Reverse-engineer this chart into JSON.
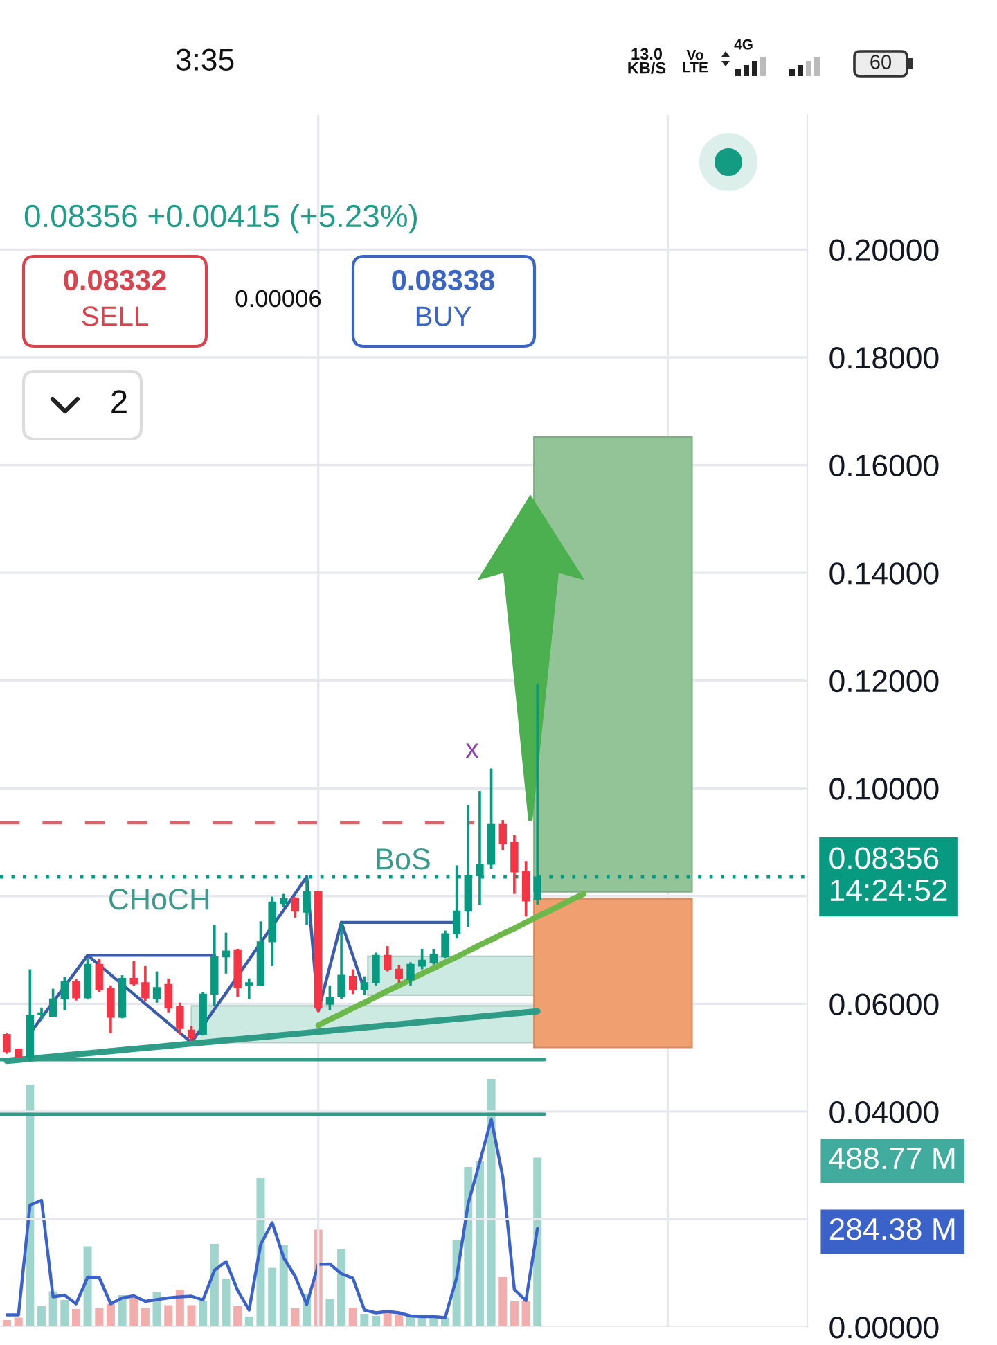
{
  "chart_data": {
    "type": "candlestick",
    "categories": [
      null,
      null,
      null,
      null,
      null,
      null,
      null,
      null,
      null,
      null,
      null,
      null,
      null,
      null,
      null,
      null,
      null,
      null,
      null,
      null,
      null,
      null,
      null,
      null,
      null,
      null,
      null,
      null,
      null,
      null,
      null,
      null,
      null,
      null,
      null,
      null,
      null,
      null,
      null,
      null,
      null,
      null,
      null,
      null,
      null,
      null,
      null,
      null,
      null,
      null,
      null,
      null,
      null,
      null,
      null,
      null,
      null,
      null,
      null,
      null,
      null,
      null,
      null,
      null,
      null,
      null,
      null,
      null,
      null,
      null
    ],
    "ohlc": [
      [
        0.0543,
        0.0545,
        0.0507,
        0.0511
      ],
      [
        0.0516,
        0.0517,
        0.0499,
        0.0501
      ],
      [
        0.0501,
        0.0664,
        0.0494,
        0.0579
      ],
      [
        0.058,
        0.0593,
        0.057,
        0.0583
      ],
      [
        0.0577,
        0.0628,
        0.0575,
        0.0609
      ],
      [
        0.0609,
        0.065,
        0.0588,
        0.0641
      ],
      [
        0.0641,
        0.0646,
        0.0606,
        0.0611
      ],
      [
        0.0611,
        0.0685,
        0.0608,
        0.0673
      ],
      [
        0.0673,
        0.0683,
        0.0622,
        0.0626
      ],
      [
        0.0628,
        0.0634,
        0.0545,
        0.0575
      ],
      [
        0.0575,
        0.0653,
        0.0573,
        0.0647
      ],
      [
        0.0647,
        0.0679,
        0.0634,
        0.0637
      ],
      [
        0.0639,
        0.067,
        0.0605,
        0.0611
      ],
      [
        0.0609,
        0.066,
        0.0602,
        0.063
      ],
      [
        0.0636,
        0.0647,
        0.0584,
        0.0592
      ],
      [
        0.0595,
        0.0602,
        0.0543,
        0.0554
      ],
      [
        0.0551,
        0.0558,
        0.0531,
        0.0537
      ],
      [
        0.0543,
        0.0622,
        0.0541,
        0.0618
      ],
      [
        0.0618,
        0.0746,
        0.0596,
        0.0687
      ],
      [
        0.0687,
        0.0732,
        0.0656,
        0.0698
      ],
      [
        0.07,
        0.0702,
        0.0613,
        0.063
      ],
      [
        0.0634,
        0.0647,
        0.0609,
        0.0639
      ],
      [
        0.0634,
        0.0753,
        0.0633,
        0.0715
      ],
      [
        0.0715,
        0.0799,
        0.067,
        0.0789
      ],
      [
        0.0786,
        0.0804,
        0.0779,
        0.0795
      ],
      [
        0.0796,
        0.0798,
        0.076,
        0.0772
      ],
      [
        0.077,
        0.0836,
        0.0746,
        0.0808
      ],
      [
        0.0808,
        0.081,
        0.0585,
        0.0592
      ],
      [
        0.0599,
        0.0634,
        0.0588,
        0.0611
      ],
      [
        0.0613,
        0.0751,
        0.0609,
        0.0653
      ],
      [
        0.0651,
        0.0664,
        0.0618,
        0.0626
      ],
      [
        0.0626,
        0.0651,
        0.0616,
        0.0639
      ],
      [
        0.0639,
        0.0695,
        0.0634,
        0.069
      ],
      [
        0.069,
        0.0707,
        0.066,
        0.0664
      ],
      [
        0.0664,
        0.0672,
        0.0639,
        0.0647
      ],
      [
        0.0645,
        0.0677,
        0.0634,
        0.0673
      ],
      [
        0.067,
        0.0702,
        0.0664,
        0.0681
      ],
      [
        0.0677,
        0.0702,
        0.0673,
        0.0692
      ],
      [
        0.0687,
        0.0736,
        0.0685,
        0.073
      ],
      [
        0.073,
        0.0857,
        0.0721,
        0.0772
      ],
      [
        0.0772,
        0.0969,
        0.0743,
        0.0838
      ],
      [
        0.0838,
        0.0995,
        0.0783,
        0.0859
      ],
      [
        0.0859,
        0.1037,
        0.0851,
        0.0933
      ],
      [
        0.0933,
        0.0941,
        0.0885,
        0.0897
      ],
      [
        0.0899,
        0.0913,
        0.0804,
        0.0845
      ],
      [
        0.0845,
        0.0865,
        0.0762,
        0.0791
      ],
      [
        0.0794,
        0.1194,
        0.0784,
        0.08356
      ],
      null,
      null,
      null,
      null,
      null,
      null,
      null,
      null,
      null,
      null,
      null,
      null,
      null,
      null,
      null,
      null,
      null,
      null,
      null,
      null,
      null,
      null,
      null
    ],
    "colors": [
      "#f23645",
      "#f23645",
      "#089981",
      "#089981",
      "#089981",
      "#089981",
      "#f23645",
      "#089981",
      "#f23645",
      "#f23645",
      "#089981",
      "#f23645",
      "#f23645",
      "#089981",
      "#f23645",
      "#f23645",
      "#f23645",
      "#089981",
      "#089981",
      "#089981",
      "#f23645",
      "#089981",
      "#089981",
      "#089981",
      "#089981",
      "#f23645",
      "#089981",
      "#f23645",
      "#089981",
      "#089981",
      "#f23645",
      "#089981",
      "#089981",
      "#f23645",
      "#f23645",
      "#089981",
      "#089981",
      "#089981",
      "#089981",
      "#089981",
      "#089981",
      "#089981",
      "#089981",
      "#f23645",
      "#f23645",
      "#f23645",
      "#089981",
      null,
      null,
      null,
      null,
      null,
      null,
      null,
      null,
      null,
      null,
      null,
      null,
      null,
      null,
      null,
      null,
      null,
      null,
      null,
      null,
      null,
      null,
      null
    ],
    "series": [
      {
        "type": "bar",
        "axis": "y2",
        "colors": [
          "#f2aeac",
          "#f2aeac",
          "#a0d5ce",
          "#a0d5ce",
          "#a0d5ce",
          "#a0d5ce",
          "#f2aeac",
          "#a0d5ce",
          "#f2aeac",
          "#f2aeac",
          "#a0d5ce",
          "#f2aeac",
          "#f2aeac",
          "#a0d5ce",
          "#f2aeac",
          "#f2aeac",
          "#f2aeac",
          "#a0d5ce",
          "#a0d5ce",
          "#a0d5ce",
          "#f2aeac",
          "#a0d5ce",
          "#a0d5ce",
          "#a0d5ce",
          "#a0d5ce",
          "#f2aeac",
          "#a0d5ce",
          "#f2aeac",
          "#a0d5ce",
          "#a0d5ce",
          "#f2aeac",
          "#a0d5ce",
          "#a0d5ce",
          "#f2aeac",
          "#f2aeac",
          "#a0d5ce",
          "#a0d5ce",
          "#a0d5ce",
          "#a0d5ce",
          "#a0d5ce",
          "#a0d5ce",
          "#a0d5ce",
          "#a0d5ce",
          "#f2aeac",
          "#f2aeac",
          "#f2aeac",
          "#a0d5ce",
          null,
          null,
          null,
          null,
          null,
          null,
          null,
          null,
          null,
          null,
          null,
          null,
          null,
          null,
          null,
          null,
          null,
          null,
          null,
          null,
          null,
          null,
          null
        ],
        "values": [
          20,
          27,
          700,
          60,
          103,
          78,
          52,
          233,
          54,
          67,
          92,
          87,
          54,
          100,
          63,
          108,
          63,
          76,
          240,
          139,
          60,
          30,
          430,
          171,
          236,
          54,
          95,
          281,
          81,
          224,
          56,
          38,
          32,
          41,
          35,
          30,
          29,
          29,
          27,
          251,
          462,
          478,
          716,
          144,
          74,
          76,
          488.77,
          null,
          null,
          null,
          null,
          null,
          null,
          null,
          null,
          null,
          null,
          null,
          null,
          null,
          null,
          null,
          null,
          null,
          null,
          null,
          null,
          null,
          null,
          null
        ]
      },
      {
        "type": "line",
        "axis": "y2",
        "color": "#3b62c8",
        "values": [
          35,
          35,
          352,
          366,
          87,
          92,
          67,
          144,
          143,
          67,
          84,
          90,
          74,
          79,
          84,
          87,
          89,
          78,
          164,
          189,
          106,
          49,
          238,
          301,
          200,
          146,
          65,
          181,
          182,
          154,
          141,
          49,
          41,
          45,
          41,
          32,
          30,
          30,
          27,
          143,
          357,
          476,
          600,
          433,
          108,
          76,
          284.38,
          null,
          null,
          null,
          null,
          null,
          null,
          null,
          null,
          null,
          null,
          null,
          null,
          null,
          null,
          null,
          null,
          null,
          null,
          null,
          null,
          null,
          null,
          null
        ]
      },
      {
        "type": "line",
        "color": "#3b5bab",
        "values": [
          null,
          null,
          0.0545,
          0.0574,
          0.0603,
          0.0632,
          0.0661,
          0.069,
          0.0672,
          0.0654,
          0.0636,
          0.0618,
          0.06,
          0.0582,
          0.0564,
          0.0546,
          0.0528,
          0.0559,
          0.059,
          0.062,
          0.0651,
          0.0682,
          0.0713,
          0.0744,
          0.0774,
          0.0805,
          0.0836,
          0.0587,
          0.0669,
          0.0751,
          0.0689,
          0.0626,
          null,
          null,
          null,
          null,
          null,
          null,
          null,
          null,
          null,
          null,
          null,
          null,
          null,
          null,
          null,
          null,
          null,
          null,
          null,
          null,
          null,
          null,
          null,
          null,
          null,
          null,
          null,
          null,
          null,
          null,
          null,
          null,
          null,
          null,
          null,
          null,
          null,
          null
        ]
      },
      {
        "type": "line",
        "color": "#3b5bab",
        "values": [
          null,
          null,
          null,
          null,
          null,
          null,
          null,
          0.069,
          0.069,
          0.069,
          0.069,
          0.069,
          0.069,
          0.069,
          0.069,
          0.069,
          0.069,
          0.069,
          0.069,
          null,
          null,
          null,
          null,
          null,
          null,
          null,
          null,
          null,
          null,
          null,
          null,
          null,
          null,
          null,
          null,
          null,
          null,
          null,
          null,
          null,
          null,
          null,
          null,
          null,
          null,
          null,
          null,
          null,
          null,
          null,
          null,
          null,
          null,
          null,
          null,
          null,
          null,
          null,
          null,
          null,
          null,
          null,
          null,
          null,
          null,
          null,
          null,
          null,
          null,
          null
        ]
      },
      {
        "type": "line",
        "color": "#3b5bab",
        "values": [
          null,
          null,
          null,
          null,
          null,
          null,
          null,
          null,
          null,
          null,
          null,
          null,
          null,
          null,
          null,
          null,
          null,
          null,
          null,
          null,
          null,
          null,
          null,
          null,
          null,
          null,
          null,
          null,
          null,
          0.0751,
          0.0751,
          0.0751,
          0.0751,
          0.0751,
          0.0751,
          0.0751,
          0.0751,
          0.0751,
          0.0751,
          0.0751,
          null,
          null,
          null,
          null,
          null,
          null,
          null,
          null,
          null,
          null,
          null,
          null,
          null,
          null,
          null,
          null,
          null,
          null,
          null,
          null,
          null,
          null,
          null,
          null,
          null,
          null,
          null,
          null,
          null,
          null
        ]
      },
      {
        "type": "line",
        "color": "#2e9c86",
        "values": [
          0.0494,
          0.0496,
          0.0498,
          0.05,
          0.0502,
          0.0504,
          0.0506,
          0.0508,
          0.051,
          0.0512,
          0.0514,
          0.0516,
          0.0518,
          0.052,
          0.0522,
          0.0524,
          0.0526,
          0.0528,
          0.053,
          0.0532,
          0.0534,
          0.0536,
          0.0538,
          0.054,
          0.0542,
          0.0544,
          0.0546,
          0.0548,
          0.055,
          0.0552,
          0.0554,
          0.0556,
          0.0558,
          0.056,
          0.0562,
          0.0564,
          0.0566,
          0.0568,
          0.057,
          0.0572,
          0.0574,
          0.0576,
          0.0578,
          0.058,
          0.0582,
          0.0584,
          0.0586,
          null,
          null,
          null,
          null,
          null,
          null,
          null,
          null,
          null,
          null,
          null,
          null,
          null,
          null,
          null,
          null,
          null,
          null,
          null,
          null,
          null,
          null,
          null
        ]
      },
      {
        "type": "line",
        "color": "#6cb84a",
        "values": [
          null,
          null,
          null,
          null,
          null,
          null,
          null,
          null,
          null,
          null,
          null,
          null,
          null,
          null,
          null,
          null,
          null,
          null,
          null,
          null,
          null,
          null,
          null,
          null,
          null,
          null,
          null,
          0.056,
          0.0571,
          0.0581,
          0.0592,
          0.0602,
          0.0613,
          0.0624,
          0.0634,
          0.0645,
          0.0656,
          0.0666,
          0.0677,
          0.0687,
          0.0698,
          0.0709,
          0.0719,
          0.073,
          0.074,
          0.0751,
          0.0762,
          0.0772,
          0.0783,
          0.0794,
          0.0804,
          null,
          null,
          null,
          null,
          null,
          null,
          null,
          null,
          null,
          null,
          null,
          null,
          null,
          null,
          null,
          null,
          null,
          null,
          null
        ]
      }
    ],
    "ylim": [
      0,
      0.225
    ],
    "yticks": [
      {
        "value": 0.0,
        "label": "0.00000"
      },
      {
        "value": 0.02,
        "label": null
      },
      {
        "value": 0.04,
        "label": "0.04000"
      },
      {
        "value": 0.06,
        "label": "0.06000"
      },
      {
        "value": 0.08,
        "label": null
      },
      {
        "value": 0.1,
        "label": "0.10000"
      },
      {
        "value": 0.12,
        "label": "0.12000"
      },
      {
        "value": 0.14,
        "label": "0.14000"
      },
      {
        "value": 0.16,
        "label": "0.16000"
      },
      {
        "value": 0.18,
        "label": "0.18000"
      },
      {
        "value": 0.2,
        "label": "0.20000"
      }
    ],
    "y2lim": [
      0,
      3500
    ],
    "y2ticks": [
      {
        "value": 284.38,
        "label": "284.38 M"
      },
      {
        "value": 488.77,
        "label": "488.77 M"
      }
    ],
    "ref_lines": [
      {
        "axis": "y",
        "value": 0.08356,
        "label": "0.08356\n14:24:52",
        "color": "#089981",
        "line_style": "dotted"
      },
      {
        "axis": "y",
        "value": 0.0936,
        "color": "#dc646e",
        "line_style": "dashed"
      },
      {
        "axis": "y",
        "value": 0.0496,
        "color": "#2e9c86",
        "line_style": "solid"
      },
      {
        "axis": "y",
        "value": 0.0395,
        "color": "#2e9c86",
        "line_style": "solid"
      }
    ],
    "bands": [
      {
        "axis": "y",
        "from": 0.0528,
        "to": 0.0596,
        "color": "#cdeae2"
      },
      {
        "axis": "y",
        "from": 0.0616,
        "to": 0.0688,
        "color": "#cdeae2"
      },
      {
        "axis": "y",
        "from": 0.0808,
        "to": 0.1652,
        "color": "#92c498"
      },
      {
        "axis": "y",
        "from": 0.0519,
        "to": 0.0795,
        "color": "#f0a070"
      }
    ],
    "annotations": [
      "3:35",
      "13.0\nKB/S",
      "Vo\nLTE",
      "4G",
      "60",
      "0.08356 +0.00415 (+5.23%)",
      "0.08332",
      "SELL",
      "0.00006",
      "0.08338",
      "BUY",
      "2",
      "CHoCH",
      "BoS",
      "x"
    ],
    "grid": true,
    "tick_labels": "y"
  }
}
